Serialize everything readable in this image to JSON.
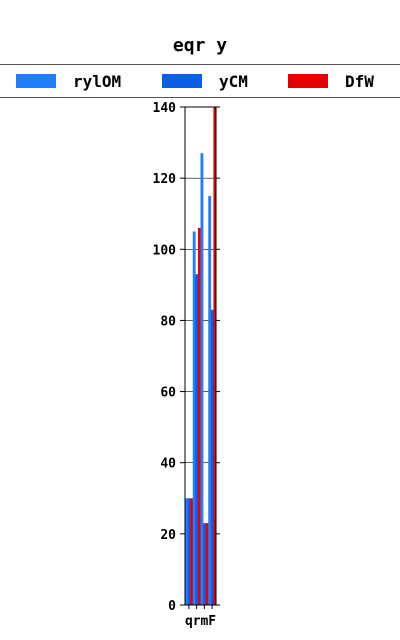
{
  "chart_data": {
    "type": "bar",
    "title": "eqr y",
    "xlabel": "",
    "ylabel": "",
    "categories": [
      "q",
      "r",
      "m",
      "F"
    ],
    "series": [
      {
        "name": "rylOM",
        "color": "#1f7fff",
        "values": [
          30,
          105,
          127,
          115
        ]
      },
      {
        "name": "yCM",
        "color": "#0a5ee8",
        "values": [
          30,
          93,
          23,
          83
        ]
      },
      {
        "name": "DfW",
        "color": "#e60000",
        "values": [
          30,
          106,
          23,
          140
        ]
      }
    ],
    "ylim": [
      0,
      140
    ],
    "yticks": [
      0,
      20,
      40,
      60,
      80,
      100,
      120,
      140
    ],
    "grid": true,
    "legend_position": "top"
  }
}
